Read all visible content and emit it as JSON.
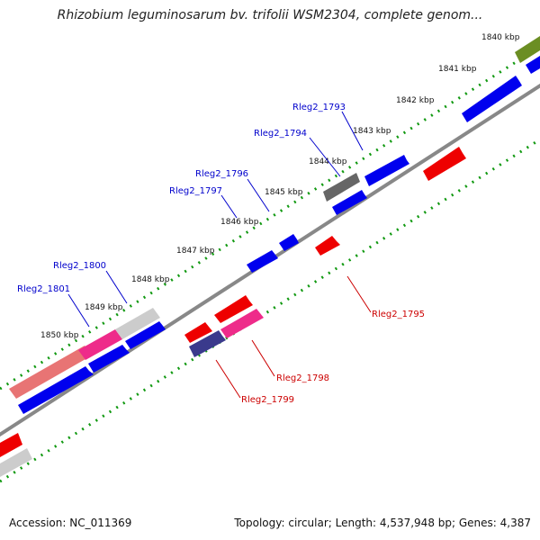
{
  "title": "Rhizobium leguminosarum bv. trifolii WSM2304, complete genom...",
  "accession": "Accession: NC_011369",
  "summary": "Topology: circular; Length: 4,537,948 bp; Genes: 4,387",
  "colors": {
    "forward_gene": "#0000ee",
    "reverse_gene": "#ee0000",
    "backbone": "#888888",
    "ticks": "#119911",
    "forward_label": "#0000cc",
    "reverse_label": "#cc0000"
  },
  "scale_labels": [
    "1840 kbp",
    "1841 kbp",
    "1842 kbp",
    "1843 kbp",
    "1844 kbp",
    "1845 kbp",
    "1846 kbp",
    "1847 kbp",
    "1848 kbp",
    "1849 kbp",
    "1850 kbp"
  ],
  "gene_labels": {
    "rleg2_1793": "Rleg2_1793",
    "rleg2_1794": "Rleg2_1794",
    "rleg2_1796": "Rleg2_1796",
    "rleg2_1797": "Rleg2_1797",
    "rleg2_1800": "Rleg2_1800",
    "rleg2_1801": "Rleg2_1801",
    "rleg2_1795": "Rleg2_1795",
    "rleg2_1798": "Rleg2_1798",
    "rleg2_1799": "Rleg2_1799"
  }
}
